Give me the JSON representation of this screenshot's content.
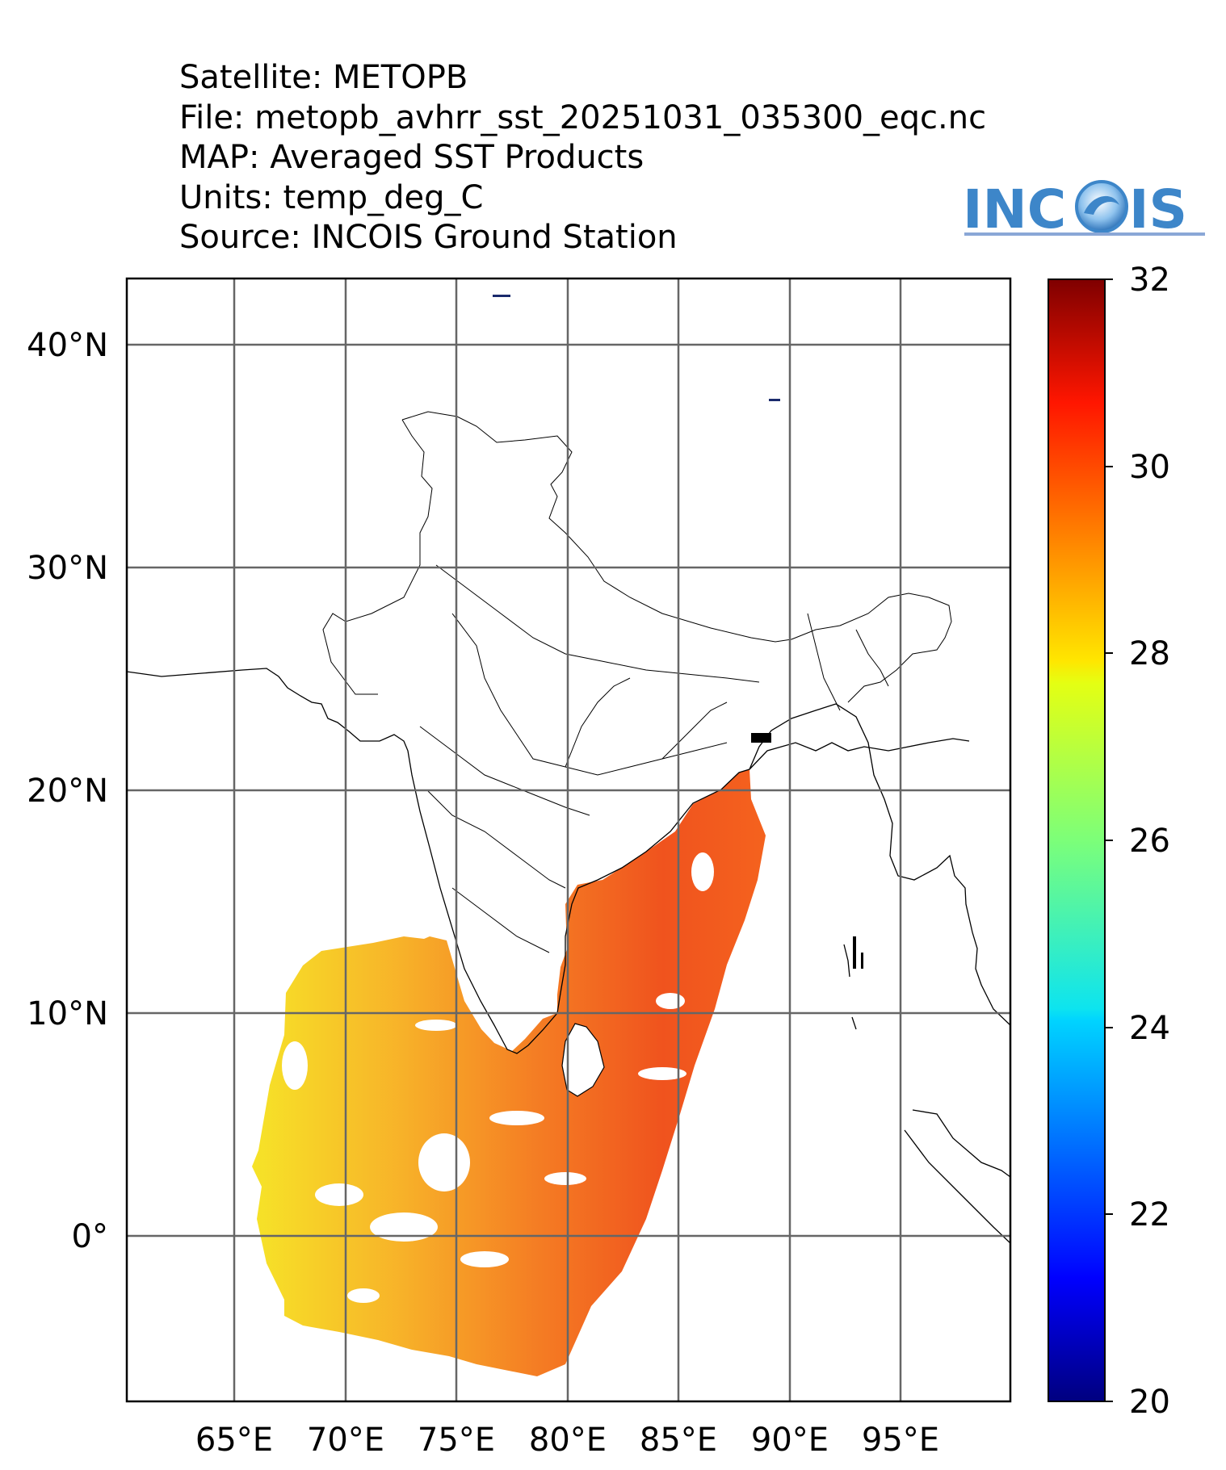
{
  "header": {
    "lines": [
      "Satellite: METOPB",
      "File: metopb_avhrr_sst_20251031_035300_eqc.nc",
      "MAP: Averaged SST Products",
      "Units: temp_deg_C",
      "Source: INCOIS Ground Station"
    ]
  },
  "logo": {
    "text": "INCOIS"
  },
  "map": {
    "lon_range": [
      60.5,
      100
    ],
    "lat_range": [
      -7.5,
      43
    ],
    "lon_ticks": [
      {
        "value": 65,
        "label": "65°E"
      },
      {
        "value": 70,
        "label": "70°E"
      },
      {
        "value": 75,
        "label": "75°E"
      },
      {
        "value": 80,
        "label": "80°E"
      },
      {
        "value": 85,
        "label": "85°E"
      },
      {
        "value": 90,
        "label": "90°E"
      },
      {
        "value": 95,
        "label": "95°E"
      }
    ],
    "lat_ticks": [
      {
        "value": 40,
        "label": "40°N"
      },
      {
        "value": 30,
        "label": "30°N"
      },
      {
        "value": 20,
        "label": "20°N"
      },
      {
        "value": 10,
        "label": "10°N"
      },
      {
        "value": 0,
        "label": "0°"
      }
    ],
    "grid": true
  },
  "colorbar": {
    "min": 20,
    "max": 32,
    "colormap": "jet",
    "ticks": [
      "20",
      "22",
      "24",
      "26",
      "28",
      "30",
      "32"
    ]
  },
  "colors": {
    "gridline": "#666666",
    "coastline": "#000000",
    "sst_warm": "#f25a10",
    "sst_mid": "#f7a21b",
    "sst_cool": "#f6e01a",
    "logo_blue": "#3d86c9"
  }
}
